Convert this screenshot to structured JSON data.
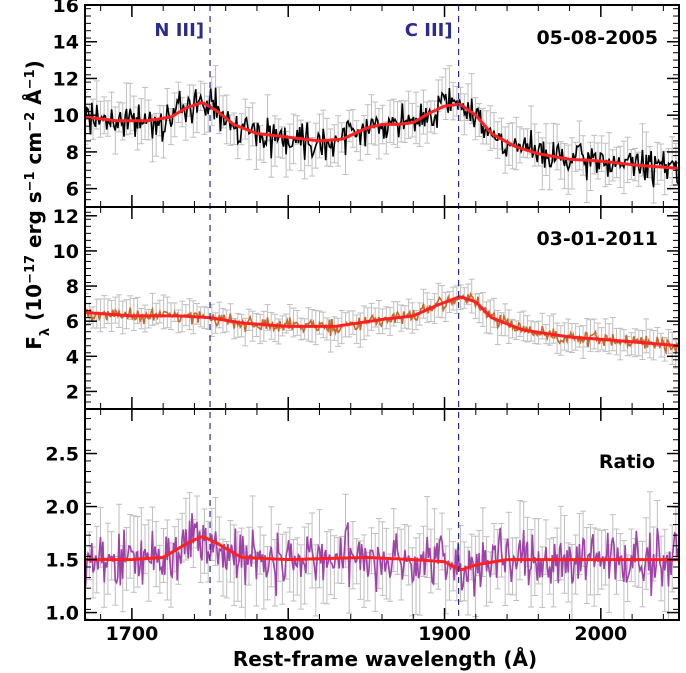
{
  "chart_data": {
    "type": "line",
    "xlabel": "Rest-frame wavelength (Å)",
    "ylabel": "F_λ (10^-17 erg s^-1 cm^-2 Å^-1)",
    "xlim": [
      1670,
      2050
    ],
    "x_ticks": [
      1700,
      1800,
      1900,
      2000
    ],
    "vertical_lines": [
      {
        "label": "N III]",
        "x": 1750,
        "style": "dashed",
        "color": "#2b2b8f"
      },
      {
        "label": "C III]",
        "x": 1909,
        "style": "dashed",
        "color": "#2b2b8f"
      }
    ],
    "panels": [
      {
        "label": "05-08-2005",
        "ylim": [
          5,
          16
        ],
        "y_ticks": [
          6,
          8,
          10,
          12,
          14,
          16
        ],
        "data_color": "#000000",
        "errorbar_color": "#bfbfbf",
        "fit_color": "#ff2020",
        "noise": 0.75,
        "err": 1.1,
        "fit": [
          [
            1670,
            9.9
          ],
          [
            1690,
            9.7
          ],
          [
            1710,
            9.7
          ],
          [
            1725,
            9.9
          ],
          [
            1735,
            10.4
          ],
          [
            1745,
            10.7
          ],
          [
            1755,
            10.2
          ],
          [
            1765,
            9.5
          ],
          [
            1780,
            9.0
          ],
          [
            1800,
            8.8
          ],
          [
            1820,
            8.6
          ],
          [
            1835,
            8.7
          ],
          [
            1850,
            9.3
          ],
          [
            1860,
            9.5
          ],
          [
            1870,
            9.5
          ],
          [
            1880,
            9.6
          ],
          [
            1890,
            10.1
          ],
          [
            1900,
            10.5
          ],
          [
            1910,
            10.6
          ],
          [
            1920,
            10.0
          ],
          [
            1930,
            9.0
          ],
          [
            1945,
            8.3
          ],
          [
            1960,
            7.9
          ],
          [
            1980,
            7.6
          ],
          [
            2000,
            7.5
          ],
          [
            2020,
            7.3
          ],
          [
            2050,
            7.1
          ]
        ]
      },
      {
        "label": "03-01-2011",
        "ylim": [
          1,
          12.5
        ],
        "y_ticks": [
          2,
          4,
          6,
          8,
          10,
          12
        ],
        "data_color": "#c26a2a",
        "errorbar_color": "#bfbfbf",
        "fit_color": "#ff2020",
        "noise": 0.35,
        "err": 0.75,
        "fit": [
          [
            1670,
            6.5
          ],
          [
            1700,
            6.3
          ],
          [
            1730,
            6.3
          ],
          [
            1750,
            6.2
          ],
          [
            1770,
            5.9
          ],
          [
            1800,
            5.7
          ],
          [
            1830,
            5.7
          ],
          [
            1860,
            6.1
          ],
          [
            1880,
            6.3
          ],
          [
            1895,
            6.9
          ],
          [
            1910,
            7.4
          ],
          [
            1920,
            7.1
          ],
          [
            1930,
            6.2
          ],
          [
            1950,
            5.5
          ],
          [
            1980,
            5.1
          ],
          [
            2010,
            4.9
          ],
          [
            2050,
            4.6
          ]
        ]
      },
      {
        "label": "Ratio",
        "ylim": [
          0.93,
          2.92
        ],
        "y_ticks": [
          1.0,
          1.5,
          2.0,
          2.5
        ],
        "y_tick_labels": [
          "1.0",
          "1.5",
          "2.0",
          "2.5"
        ],
        "data_color": "#a040a8",
        "errorbar_color": "#bfbfbf",
        "fit_color": "#ff2020",
        "noise": 0.22,
        "err": 0.3,
        "fit": [
          [
            1670,
            1.5
          ],
          [
            1700,
            1.5
          ],
          [
            1720,
            1.52
          ],
          [
            1735,
            1.65
          ],
          [
            1745,
            1.72
          ],
          [
            1755,
            1.65
          ],
          [
            1770,
            1.52
          ],
          [
            1800,
            1.5
          ],
          [
            1850,
            1.52
          ],
          [
            1880,
            1.5
          ],
          [
            1900,
            1.48
          ],
          [
            1910,
            1.4
          ],
          [
            1920,
            1.45
          ],
          [
            1940,
            1.5
          ],
          [
            1980,
            1.5
          ],
          [
            2050,
            1.5
          ]
        ]
      }
    ]
  }
}
